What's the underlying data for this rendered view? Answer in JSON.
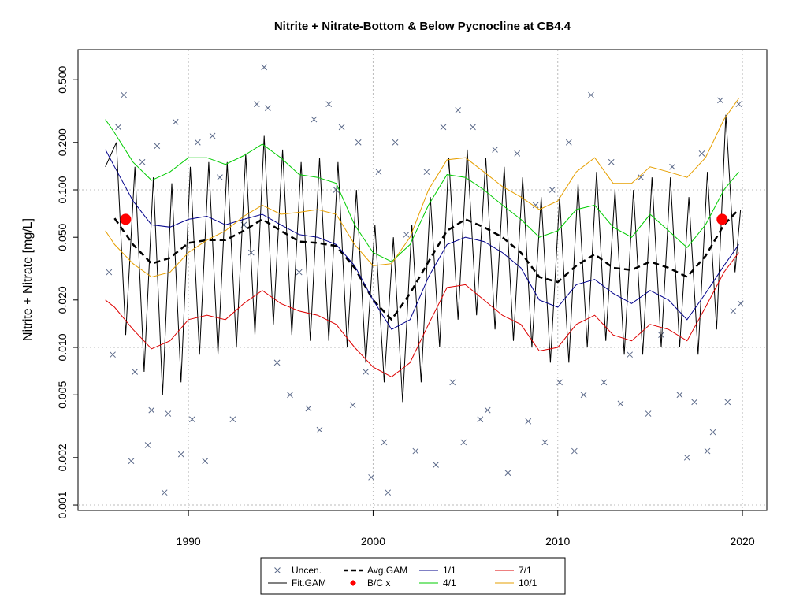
{
  "chart_data": {
    "type": "line",
    "title": "Nitrite + Nitrate-Bottom & Below Pycnocline at CB4.4",
    "y_label": "Nitrite + Nitrate [mg/L]",
    "ylog": true,
    "grid": true,
    "xlim": [
      1984.02,
      2021.32
    ],
    "xticks": [
      1990,
      2000,
      2010,
      2020
    ],
    "ylim": [
      0.000923,
      0.776
    ],
    "yticks": [
      {
        "value": 0.001,
        "label": "0.001"
      },
      {
        "value": 0.002,
        "label": "0.002"
      },
      {
        "value": 0.005,
        "label": "0.005"
      },
      {
        "value": 0.01,
        "label": "0.010"
      },
      {
        "value": 0.02,
        "label": "0.020"
      },
      {
        "value": 0.05,
        "label": "0.050"
      },
      {
        "value": 0.1,
        "label": "0.100"
      },
      {
        "value": 0.2,
        "label": "0.200"
      },
      {
        "value": 0.5,
        "label": "0.500"
      }
    ],
    "x": [
      1985.5,
      1986,
      1987,
      1988,
      1989,
      1990,
      1991,
      1992,
      1993,
      1994,
      1995,
      1996,
      1997,
      1998,
      1999,
      2000,
      2001,
      2002,
      2003,
      2004,
      2005,
      2006,
      2007,
      2008,
      2009,
      2010,
      2011,
      2012,
      2013,
      2014,
      2015,
      2016,
      2017,
      2018,
      2019,
      2019.8
    ],
    "series": [
      {
        "name": "Uncen.",
        "type": "scatter",
        "marker": "x",
        "color": "#5c6a8a",
        "x": [
          1985.7,
          1985.9,
          1986.2,
          1986.5,
          1986.9,
          1987.1,
          1987.5,
          1987.8,
          1988.0,
          1988.3,
          1988.7,
          1988.9,
          1989.3,
          1989.6,
          1990.2,
          1990.5,
          1990.9,
          1991.3,
          1991.7,
          1992.4,
          1993.0,
          1993.4,
          1993.7,
          1994.1,
          1994.3,
          1994.8,
          1995.5,
          1996.0,
          1996.5,
          1996.8,
          1997.1,
          1997.6,
          1998.0,
          1998.3,
          1998.9,
          1999.2,
          1999.6,
          1999.9,
          2000.3,
          2000.6,
          2000.8,
          2001.2,
          2001.8,
          2002.3,
          2002.9,
          2003.4,
          2003.8,
          2004.3,
          2004.6,
          2004.9,
          2005.4,
          2005.8,
          2006.2,
          2006.6,
          2007.3,
          2007.8,
          2008.4,
          2008.8,
          2009.3,
          2009.7,
          2010.1,
          2010.6,
          2010.9,
          2011.4,
          2011.8,
          2012.5,
          2012.9,
          2013.4,
          2013.9,
          2014.5,
          2014.9,
          2015.6,
          2016.2,
          2016.6,
          2017.0,
          2017.4,
          2017.8,
          2018.1,
          2018.4,
          2018.8,
          2019.2,
          2019.5,
          2019.8,
          2019.9
        ],
        "values": [
          0.03,
          0.009,
          0.25,
          0.4,
          0.0019,
          0.007,
          0.15,
          0.0024,
          0.004,
          0.19,
          0.0012,
          0.0038,
          0.27,
          0.0021,
          0.0035,
          0.2,
          0.0019,
          0.22,
          0.12,
          0.0035,
          0.06,
          0.04,
          0.35,
          0.6,
          0.33,
          0.008,
          0.005,
          0.03,
          0.0041,
          0.28,
          0.003,
          0.35,
          0.1,
          0.25,
          0.0043,
          0.2,
          0.007,
          0.0015,
          0.13,
          0.0025,
          0.0012,
          0.2,
          0.052,
          0.0022,
          0.13,
          0.0018,
          0.25,
          0.006,
          0.32,
          0.0025,
          0.25,
          0.0035,
          0.004,
          0.18,
          0.0016,
          0.17,
          0.0034,
          0.08,
          0.0025,
          0.1,
          0.006,
          0.2,
          0.0022,
          0.005,
          0.4,
          0.006,
          0.15,
          0.0044,
          0.009,
          0.12,
          0.0038,
          0.012,
          0.14,
          0.005,
          0.002,
          0.0045,
          0.17,
          0.0022,
          0.0029,
          0.37,
          0.0045,
          0.017,
          0.35,
          0.019
        ]
      },
      {
        "name": "Fit.GAM",
        "type": "line",
        "color": "#000000",
        "x": [
          1985.5,
          1986.1,
          1986.6,
          1987.1,
          1987.6,
          1988.1,
          1988.6,
          1989.1,
          1989.6,
          1990.1,
          1990.6,
          1991.1,
          1991.6,
          1992.1,
          1992.6,
          1993.1,
          1993.6,
          1994.1,
          1994.6,
          1995.1,
          1995.6,
          1996.1,
          1996.6,
          1997.1,
          1997.6,
          1998.1,
          1998.6,
          1999.1,
          1999.6,
          2000.1,
          2000.6,
          2001.1,
          2001.6,
          2002.1,
          2002.6,
          2003.1,
          2003.6,
          2004.1,
          2004.6,
          2005.1,
          2005.6,
          2006.1,
          2006.6,
          2007.1,
          2007.6,
          2008.1,
          2008.6,
          2009.1,
          2009.6,
          2010.1,
          2010.6,
          2011.1,
          2011.6,
          2012.1,
          2012.6,
          2013.1,
          2013.6,
          2014.1,
          2014.6,
          2015.1,
          2015.6,
          2016.1,
          2016.6,
          2017.1,
          2017.6,
          2018.1,
          2018.6,
          2019.1,
          2019.6,
          2019.9
        ],
        "values": [
          0.14,
          0.2,
          0.012,
          0.14,
          0.007,
          0.12,
          0.005,
          0.11,
          0.006,
          0.14,
          0.009,
          0.15,
          0.009,
          0.15,
          0.01,
          0.17,
          0.012,
          0.22,
          0.014,
          0.18,
          0.012,
          0.15,
          0.011,
          0.16,
          0.011,
          0.15,
          0.01,
          0.1,
          0.008,
          0.06,
          0.006,
          0.05,
          0.0045,
          0.06,
          0.006,
          0.09,
          0.01,
          0.16,
          0.015,
          0.18,
          0.016,
          0.16,
          0.013,
          0.14,
          0.011,
          0.12,
          0.01,
          0.09,
          0.008,
          0.09,
          0.008,
          0.11,
          0.01,
          0.13,
          0.011,
          0.1,
          0.009,
          0.1,
          0.009,
          0.12,
          0.01,
          0.12,
          0.01,
          0.09,
          0.009,
          0.13,
          0.013,
          0.3,
          0.03,
          0.075
        ]
      },
      {
        "name": "Avg.GAM",
        "type": "line",
        "dash": true,
        "color": "#000000",
        "values": [
          null,
          0.066,
          0.045,
          0.034,
          0.037,
          0.046,
          0.048,
          0.048,
          0.055,
          0.065,
          0.055,
          0.047,
          0.046,
          0.044,
          0.032,
          0.02,
          0.015,
          0.022,
          0.035,
          0.055,
          0.065,
          0.058,
          0.05,
          0.04,
          0.028,
          0.026,
          0.033,
          0.039,
          0.032,
          0.031,
          0.035,
          0.032,
          0.028,
          0.038,
          0.06,
          0.075
        ]
      },
      {
        "name": "B/C x",
        "type": "scatter",
        "marker": "dot",
        "color": "#ff0000",
        "x": [
          1986.6,
          2018.9
        ],
        "values": [
          0.065,
          0.065
        ]
      },
      {
        "name": "1/1",
        "type": "line",
        "color": "#00008b",
        "values": [
          0.18,
          0.14,
          0.085,
          0.06,
          0.058,
          0.065,
          0.068,
          0.06,
          0.065,
          0.07,
          0.06,
          0.052,
          0.05,
          0.045,
          0.033,
          0.02,
          0.013,
          0.015,
          0.028,
          0.045,
          0.05,
          0.047,
          0.04,
          0.032,
          0.02,
          0.018,
          0.025,
          0.027,
          0.022,
          0.019,
          0.023,
          0.02,
          0.015,
          0.022,
          0.033,
          0.045
        ]
      },
      {
        "name": "4/1",
        "type": "line",
        "color": "#00cc00",
        "values": [
          0.28,
          0.23,
          0.15,
          0.115,
          0.13,
          0.16,
          0.16,
          0.145,
          0.165,
          0.195,
          0.16,
          0.125,
          0.12,
          0.11,
          0.06,
          0.04,
          0.035,
          0.045,
          0.08,
          0.125,
          0.12,
          0.1,
          0.08,
          0.065,
          0.05,
          0.055,
          0.075,
          0.08,
          0.058,
          0.05,
          0.07,
          0.055,
          0.043,
          0.06,
          0.1,
          0.13
        ]
      },
      {
        "name": "7/1",
        "type": "line",
        "color": "#dd0000",
        "values": [
          0.02,
          0.018,
          0.013,
          0.0098,
          0.011,
          0.015,
          0.016,
          0.015,
          0.019,
          0.023,
          0.019,
          0.017,
          0.016,
          0.014,
          0.01,
          0.0075,
          0.0065,
          0.008,
          0.014,
          0.024,
          0.025,
          0.02,
          0.016,
          0.014,
          0.0095,
          0.01,
          0.014,
          0.016,
          0.012,
          0.011,
          0.014,
          0.013,
          0.011,
          0.018,
          0.03,
          0.04
        ]
      },
      {
        "name": "10/1",
        "type": "line",
        "color": "#e69f00",
        "values": [
          0.055,
          0.045,
          0.034,
          0.028,
          0.03,
          0.04,
          0.048,
          0.055,
          0.068,
          0.08,
          0.07,
          0.072,
          0.075,
          0.07,
          0.045,
          0.033,
          0.034,
          0.05,
          0.1,
          0.155,
          0.16,
          0.13,
          0.105,
          0.09,
          0.075,
          0.085,
          0.13,
          0.16,
          0.11,
          0.11,
          0.14,
          0.13,
          0.12,
          0.16,
          0.28,
          0.38
        ]
      }
    ]
  }
}
